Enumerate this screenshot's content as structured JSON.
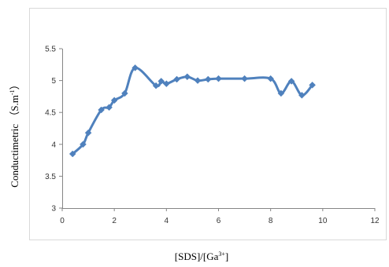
{
  "chart_data": {
    "type": "line",
    "title": "",
    "xlabel": "[SDS]/[Ga",
    "xlabel_sup": "3+",
    "xlabel_end": "]",
    "ylabel": "Conductimetric  （S.m",
    "ylabel_sup": "-1",
    "ylabel_end": "）",
    "xlim": [
      0,
      12
    ],
    "ylim": [
      3,
      5.5
    ],
    "xticks": [
      "0",
      "2",
      "4",
      "6",
      "8",
      "10",
      "12"
    ],
    "yticks": [
      "3",
      "3.5",
      "4",
      "4.5",
      "5",
      "5.5"
    ],
    "grid": false,
    "legend": "none",
    "series": [
      {
        "color": "#4f81bd",
        "marker": "diamond",
        "smooth": true,
        "x": [
          0.4,
          0.8,
          1.0,
          1.5,
          1.8,
          2.0,
          2.4,
          2.8,
          3.6,
          3.8,
          4.0,
          4.4,
          4.8,
          5.2,
          5.6,
          6.0,
          7.0,
          8.0,
          8.4,
          8.8,
          9.2,
          9.6
        ],
        "y": [
          3.85,
          4.0,
          4.18,
          4.54,
          4.58,
          4.69,
          4.8,
          5.2,
          4.92,
          4.99,
          4.95,
          5.02,
          5.06,
          5.0,
          5.02,
          5.03,
          5.03,
          5.03,
          4.8,
          4.99,
          4.77,
          4.93
        ]
      }
    ]
  }
}
